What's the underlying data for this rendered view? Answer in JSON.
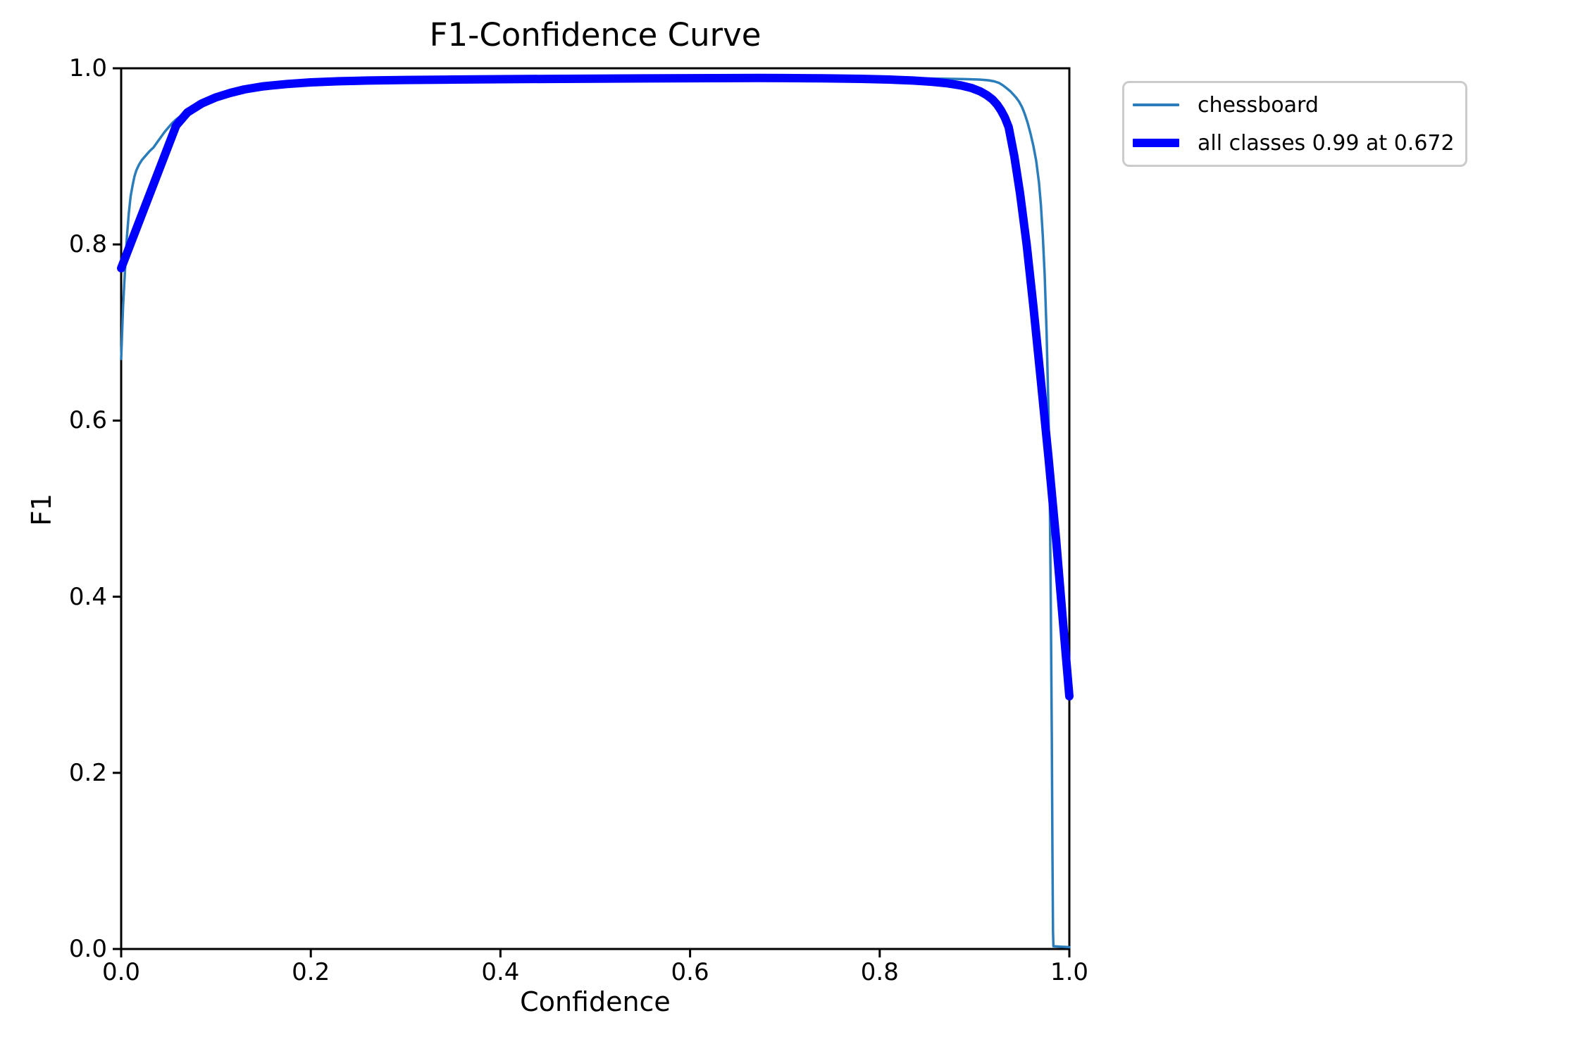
{
  "chart_data": {
    "type": "line",
    "title": "F1-Confidence Curve",
    "xlabel": "Confidence",
    "ylabel": "F1",
    "xlim": [
      0.0,
      1.0
    ],
    "ylim": [
      0.0,
      1.0
    ],
    "grid": false,
    "legend_position": "outside-upper-right",
    "xticks": [
      0.0,
      0.2,
      0.4,
      0.6,
      0.8,
      1.0
    ],
    "xtick_labels": [
      "0.0",
      "0.2",
      "0.4",
      "0.6",
      "0.8",
      "1.0"
    ],
    "yticks": [
      0.0,
      0.2,
      0.4,
      0.6,
      0.8,
      1.0
    ],
    "ytick_labels": [
      "0.0",
      "0.2",
      "0.4",
      "0.6",
      "0.8",
      "1.0"
    ],
    "axis_color": "#000000",
    "series": [
      {
        "name": "chessboard",
        "color": "#2b7cba",
        "line_width": 3.5,
        "points": [
          [
            0.0,
            0.67
          ],
          [
            0.002,
            0.73
          ],
          [
            0.004,
            0.77
          ],
          [
            0.006,
            0.808
          ],
          [
            0.008,
            0.835
          ],
          [
            0.01,
            0.855
          ],
          [
            0.012,
            0.867
          ],
          [
            0.014,
            0.877
          ],
          [
            0.016,
            0.884
          ],
          [
            0.019,
            0.891
          ],
          [
            0.022,
            0.896
          ],
          [
            0.026,
            0.901
          ],
          [
            0.03,
            0.906
          ],
          [
            0.034,
            0.91
          ],
          [
            0.038,
            0.916
          ],
          [
            0.042,
            0.922
          ],
          [
            0.046,
            0.928
          ],
          [
            0.05,
            0.933
          ],
          [
            0.054,
            0.938
          ],
          [
            0.058,
            0.942
          ],
          [
            0.063,
            0.946
          ],
          [
            0.068,
            0.95
          ],
          [
            0.074,
            0.953
          ],
          [
            0.08,
            0.956
          ],
          [
            0.09,
            0.96
          ],
          [
            0.1,
            0.9655
          ],
          [
            0.115,
            0.97
          ],
          [
            0.13,
            0.9735
          ],
          [
            0.15,
            0.977
          ],
          [
            0.17,
            0.9795
          ],
          [
            0.19,
            0.9815
          ],
          [
            0.21,
            0.9832
          ],
          [
            0.24,
            0.985
          ],
          [
            0.27,
            0.986
          ],
          [
            0.3,
            0.9868
          ],
          [
            0.35,
            0.9874
          ],
          [
            0.4,
            0.9878
          ],
          [
            0.45,
            0.9882
          ],
          [
            0.5,
            0.9886
          ],
          [
            0.55,
            0.9889
          ],
          [
            0.6,
            0.9892
          ],
          [
            0.65,
            0.9893
          ],
          [
            0.7,
            0.9893
          ],
          [
            0.75,
            0.9891
          ],
          [
            0.8,
            0.9888
          ],
          [
            0.84,
            0.9885
          ],
          [
            0.87,
            0.9881
          ],
          [
            0.89,
            0.9877
          ],
          [
            0.905,
            0.9872
          ],
          [
            0.915,
            0.9863
          ],
          [
            0.921,
            0.9851
          ],
          [
            0.926,
            0.9833
          ],
          [
            0.93,
            0.9806
          ],
          [
            0.934,
            0.9772
          ],
          [
            0.938,
            0.9737
          ],
          [
            0.941,
            0.9702
          ],
          [
            0.944,
            0.9666
          ],
          [
            0.947,
            0.962
          ],
          [
            0.95,
            0.9561
          ],
          [
            0.953,
            0.9481
          ],
          [
            0.956,
            0.9381
          ],
          [
            0.959,
            0.9261
          ],
          [
            0.962,
            0.9121
          ],
          [
            0.965,
            0.8951
          ],
          [
            0.968,
            0.8701
          ],
          [
            0.97,
            0.8451
          ],
          [
            0.972,
            0.8101
          ],
          [
            0.974,
            0.7651
          ],
          [
            0.976,
            0.7001
          ],
          [
            0.978,
            0.6101
          ],
          [
            0.9795,
            0.5001
          ],
          [
            0.9805,
            0.3801
          ],
          [
            0.9815,
            0.2401
          ],
          [
            0.9822,
            0.1101
          ],
          [
            0.9828,
            0.0201
          ],
          [
            0.9832,
            0.0031
          ],
          [
            1.0,
            0.0021
          ]
        ]
      },
      {
        "name": "all classes 0.99 at 0.672",
        "color": "#0000ff",
        "line_width": 12,
        "points": [
          [
            0.0,
            0.773
          ],
          [
            0.058,
            0.935
          ],
          [
            0.07,
            0.95
          ],
          [
            0.085,
            0.96
          ],
          [
            0.1,
            0.967
          ],
          [
            0.115,
            0.972
          ],
          [
            0.13,
            0.976
          ],
          [
            0.15,
            0.9795
          ],
          [
            0.175,
            0.9822
          ],
          [
            0.2,
            0.984
          ],
          [
            0.23,
            0.9853
          ],
          [
            0.26,
            0.9861
          ],
          [
            0.3,
            0.9867
          ],
          [
            0.35,
            0.9872
          ],
          [
            0.4,
            0.9876
          ],
          [
            0.45,
            0.9879
          ],
          [
            0.5,
            0.9882
          ],
          [
            0.55,
            0.9885
          ],
          [
            0.6,
            0.9887
          ],
          [
            0.65,
            0.9889
          ],
          [
            0.672,
            0.989
          ],
          [
            0.7,
            0.9889
          ],
          [
            0.74,
            0.9886
          ],
          [
            0.78,
            0.988
          ],
          [
            0.81,
            0.9872
          ],
          [
            0.835,
            0.9861
          ],
          [
            0.855,
            0.9847
          ],
          [
            0.872,
            0.9829
          ],
          [
            0.886,
            0.9805
          ],
          [
            0.897,
            0.9775
          ],
          [
            0.906,
            0.9738
          ],
          [
            0.913,
            0.9695
          ],
          [
            0.919,
            0.9645
          ],
          [
            0.924,
            0.9585
          ],
          [
            0.928,
            0.952
          ],
          [
            0.932,
            0.944
          ],
          [
            0.936,
            0.933
          ],
          [
            0.942,
            0.9
          ],
          [
            0.948,
            0.858
          ],
          [
            0.955,
            0.8
          ],
          [
            0.962,
            0.73
          ],
          [
            0.97,
            0.645
          ],
          [
            0.978,
            0.558
          ],
          [
            0.986,
            0.465
          ],
          [
            0.993,
            0.375
          ],
          [
            1.0,
            0.287
          ]
        ]
      }
    ]
  }
}
